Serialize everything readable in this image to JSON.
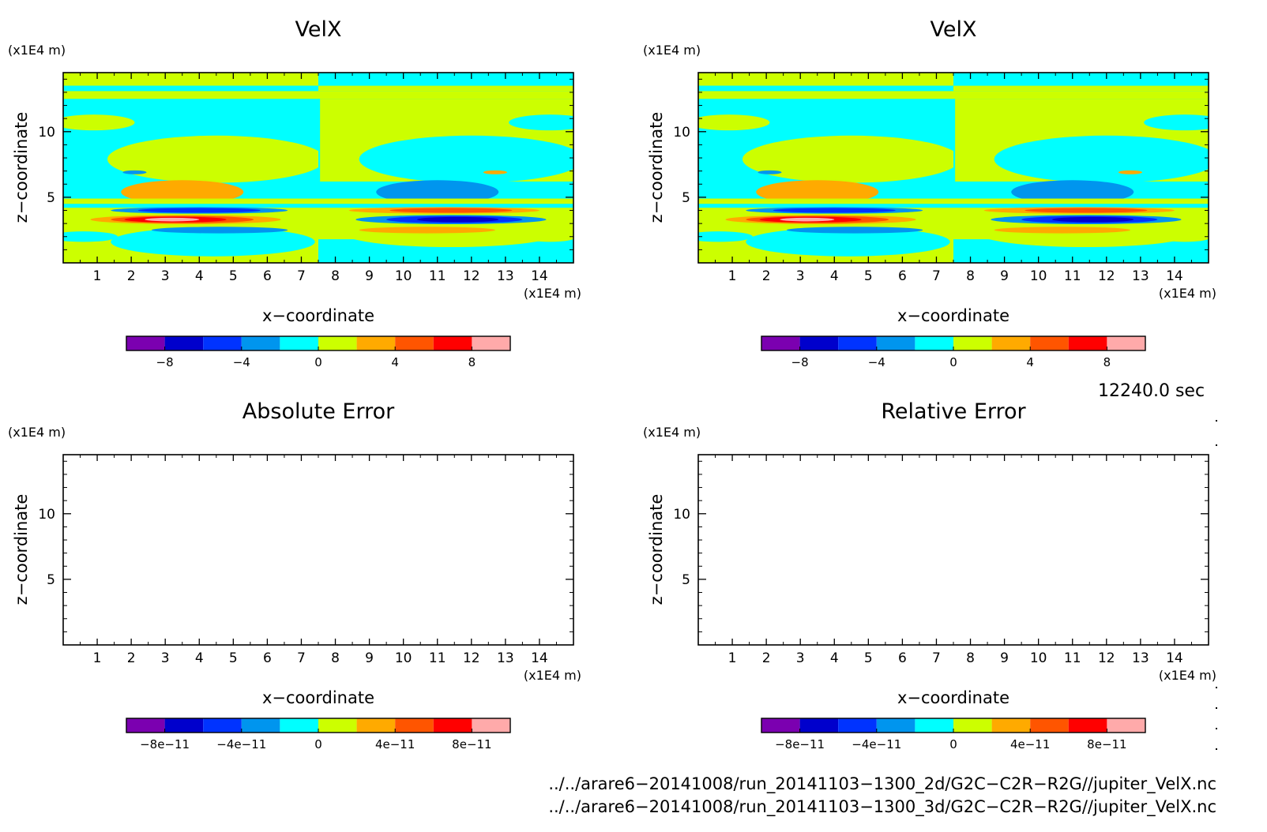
{
  "panels": [
    {
      "id": "velx-left",
      "title": "VelX",
      "unit_label": "(x1E4 m)",
      "xlabel": "x−coordinate",
      "ylabel": "z−coordinate",
      "x_unit": "(x1E4 m)",
      "filled": true,
      "colorbar": {
        "ticks": [
          "−8",
          "−4",
          "0",
          "4",
          "8"
        ]
      }
    },
    {
      "id": "velx-right",
      "title": "VelX",
      "unit_label": "(x1E4 m)",
      "xlabel": "x−coordinate",
      "ylabel": "z−coordinate",
      "x_unit": "(x1E4 m)",
      "filled": true,
      "colorbar": {
        "ticks": [
          "−8",
          "−4",
          "0",
          "4",
          "8"
        ]
      }
    },
    {
      "id": "absolute-error",
      "title": "Absolute Error",
      "unit_label": "(x1E4 m)",
      "xlabel": "x−coordinate",
      "ylabel": "z−coordinate",
      "x_unit": "(x1E4 m)",
      "filled": false,
      "colorbar": {
        "ticks": [
          "−8e−11",
          "−4e−11",
          "0",
          "4e−11",
          "8e−11"
        ]
      }
    },
    {
      "id": "relative-error",
      "title": "Relative Error",
      "unit_label": "(x1E4 m)",
      "xlabel": "x−coordinate",
      "ylabel": "z−coordinate",
      "x_unit": "(x1E4 m)",
      "filled": false,
      "colorbar": {
        "ticks": [
          "−8e−11",
          "−4e−11",
          "0",
          "4e−11",
          "8e−11"
        ]
      }
    }
  ],
  "time_label": "12240.0 sec",
  "footer": {
    "path_2d": "../../arare6−20141008/run_20141103−1300_2d/G2C−C2R−R2G//jupiter_VelX.nc",
    "path_3d": "../../arare6−20141008/run_20141103−1300_3d/G2C−C2R−R2G//jupiter_VelX.nc"
  },
  "colors": {
    "levels": [
      "#7b00b0",
      "#0000cc",
      "#0033ff",
      "#0095ee",
      "#00ffff",
      "#ccff00",
      "#ffaa00",
      "#ff5500",
      "#ff0000",
      "#ffaaaa"
    ],
    "frame": "#000000"
  },
  "chart_data": [
    {
      "type": "heatmap",
      "title": "VelX",
      "xlabel": "x−coordinate",
      "ylabel": "z−coordinate",
      "x_unit": "x1E4 m",
      "z_unit": "x1E4 m",
      "xlim": [
        0,
        15
      ],
      "ylim": [
        0,
        14.5
      ],
      "x_ticks": [
        1,
        2,
        3,
        4,
        5,
        6,
        7,
        8,
        9,
        10,
        11,
        12,
        13,
        14
      ],
      "y_ticks": [
        5,
        10
      ],
      "color_levels": [
        -10,
        -8,
        -6,
        -4,
        -2,
        0,
        2,
        4,
        6,
        8,
        10
      ],
      "features": [
        {
          "x": [
            0,
            7.5
          ],
          "z": [
            13.5,
            14.5
          ],
          "value": 1
        },
        {
          "x": [
            7.5,
            15
          ],
          "z": [
            13.5,
            14.5
          ],
          "value": -1
        },
        {
          "x": [
            0,
            15
          ],
          "z": [
            12.5,
            13.0
          ],
          "value": 1
        },
        {
          "x": [
            0,
            7.5
          ],
          "z": [
            6.3,
            12.0
          ],
          "value": -1
        },
        {
          "x": [
            7.5,
            15
          ],
          "z": [
            6.3,
            12.0
          ],
          "value": 1
        },
        {
          "x": [
            1.6,
            5.5
          ],
          "z": [
            4.6,
            6.3
          ],
          "value": 3
        },
        {
          "x": [
            9.3,
            13.3
          ],
          "z": [
            4.6,
            6.3
          ],
          "value": -3
        },
        {
          "x": [
            1.5,
            6.0
          ],
          "z": [
            2.8,
            3.7
          ],
          "value": 9
        },
        {
          "x": [
            9.0,
            13.5
          ],
          "z": [
            2.8,
            3.7
          ],
          "value": -9
        },
        {
          "x": [
            2.0,
            6.5
          ],
          "z": [
            3.9,
            4.4
          ],
          "value": -7
        },
        {
          "x": [
            8.5,
            13.5
          ],
          "z": [
            3.9,
            4.4
          ],
          "value": 7
        }
      ]
    },
    {
      "type": "heatmap",
      "title": "VelX",
      "xlabel": "x−coordinate",
      "ylabel": "z−coordinate",
      "x_unit": "x1E4 m",
      "z_unit": "x1E4 m",
      "xlim": [
        0,
        15
      ],
      "ylim": [
        0,
        14.5
      ],
      "x_ticks": [
        1,
        2,
        3,
        4,
        5,
        6,
        7,
        8,
        9,
        10,
        11,
        12,
        13,
        14
      ],
      "y_ticks": [
        5,
        10
      ],
      "color_levels": [
        -10,
        -8,
        -6,
        -4,
        -2,
        0,
        2,
        4,
        6,
        8,
        10
      ]
    },
    {
      "type": "heatmap",
      "title": "Absolute Error",
      "xlabel": "x−coordinate",
      "ylabel": "z−coordinate",
      "xlim": [
        0,
        15
      ],
      "ylim": [
        0,
        14.5
      ],
      "x_ticks": [
        1,
        2,
        3,
        4,
        5,
        6,
        7,
        8,
        9,
        10,
        11,
        12,
        13,
        14
      ],
      "y_ticks": [
        5,
        10
      ],
      "color_levels": [
        -1e-10,
        -8e-11,
        -6e-11,
        -4e-11,
        -2e-11,
        0,
        2e-11,
        4e-11,
        6e-11,
        8e-11,
        1e-10
      ],
      "values": "all zero (no filled contours)"
    },
    {
      "type": "heatmap",
      "title": "Relative Error",
      "xlabel": "x−coordinate",
      "ylabel": "z−coordinate",
      "xlim": [
        0,
        15
      ],
      "ylim": [
        0,
        14.5
      ],
      "x_ticks": [
        1,
        2,
        3,
        4,
        5,
        6,
        7,
        8,
        9,
        10,
        11,
        12,
        13,
        14
      ],
      "y_ticks": [
        5,
        10
      ],
      "color_levels": [
        -1e-10,
        -8e-11,
        -6e-11,
        -4e-11,
        -2e-11,
        0,
        2e-11,
        4e-11,
        6e-11,
        8e-11,
        1e-10
      ],
      "values": "all zero (no filled contours)"
    }
  ]
}
